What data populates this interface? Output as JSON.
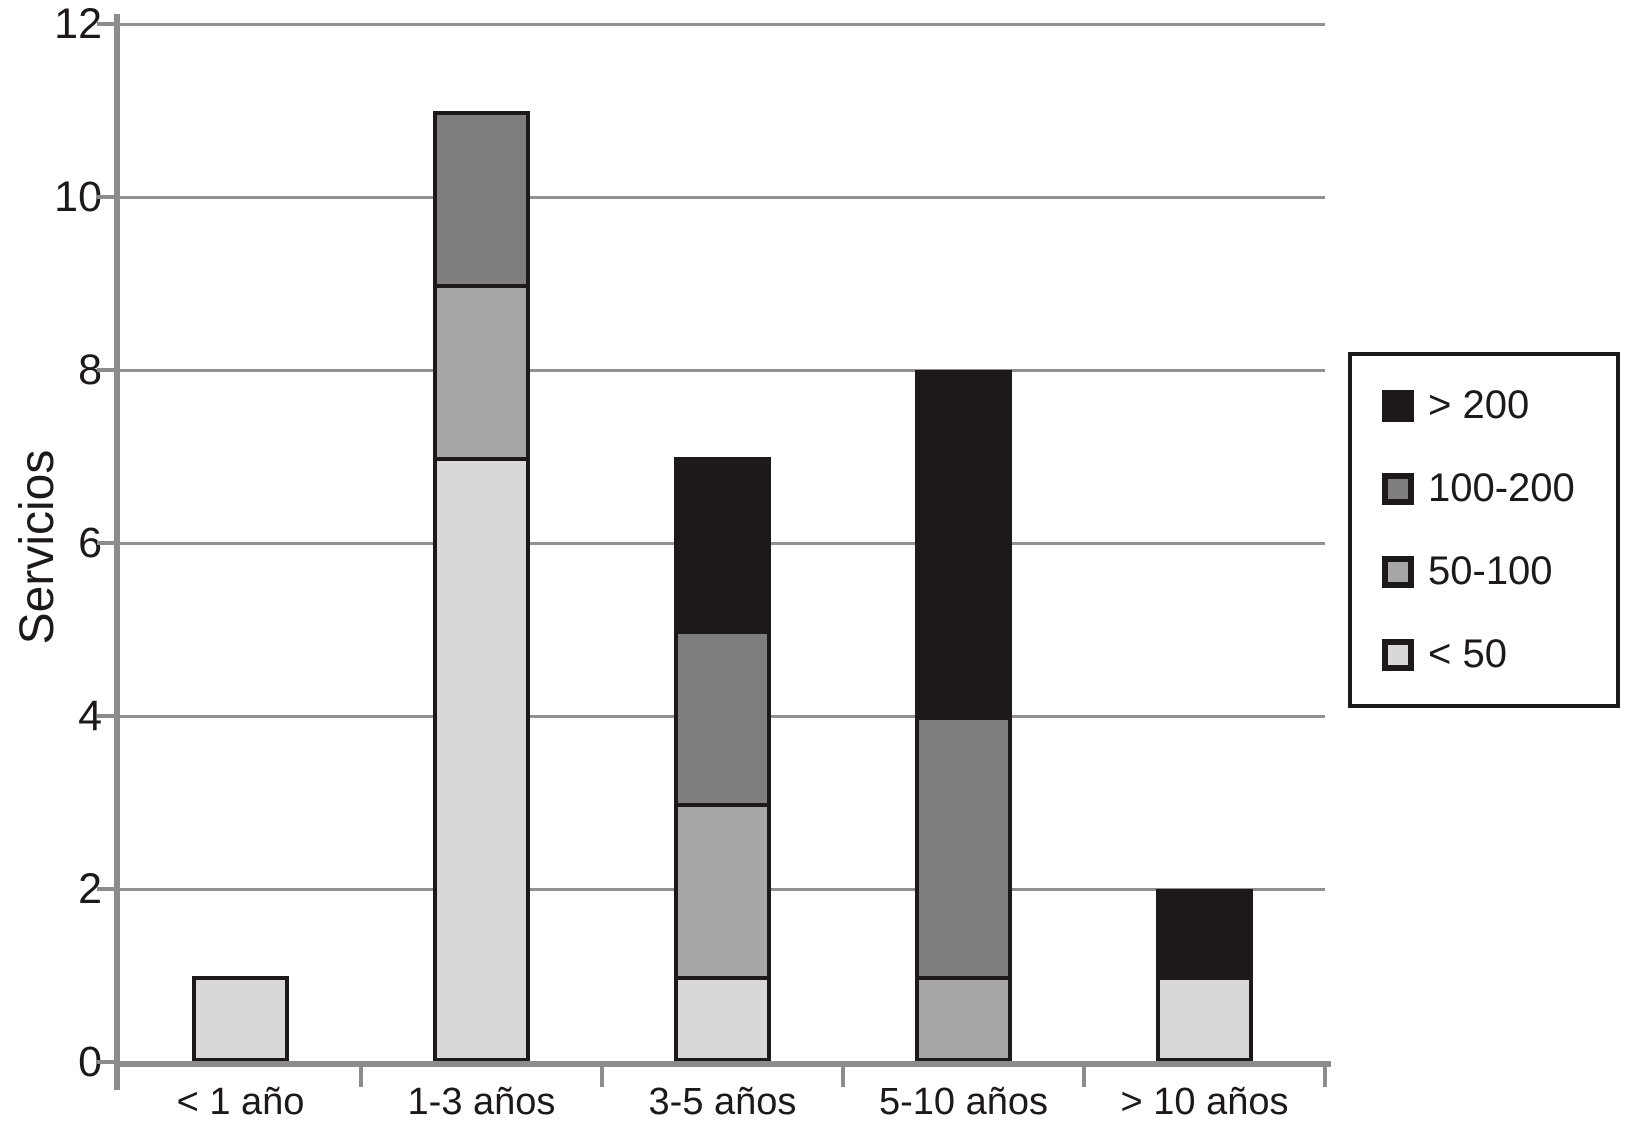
{
  "chart_data": {
    "type": "bar",
    "stacked": true,
    "ylabel": "Servicios",
    "xlabel": "",
    "ylim": [
      0,
      12
    ],
    "yticks": [
      0,
      2,
      4,
      6,
      8,
      10,
      12
    ],
    "grid": true,
    "categories": [
      "< 1 año",
      "1-3 años",
      "3-5 años",
      "5-10 años",
      "> 10 años"
    ],
    "series": [
      {
        "name": "< 50",
        "color": "#d8d8d8",
        "values": [
          1,
          7,
          1,
          0,
          1
        ]
      },
      {
        "name": "50-100",
        "color": "#a6a6a6",
        "values": [
          0,
          2,
          2,
          1,
          0
        ]
      },
      {
        "name": "100-200",
        "color": "#7e7e7e",
        "values": [
          0,
          2,
          2,
          3,
          0
        ]
      },
      {
        "name": "> 200",
        "color": "#1d191a",
        "values": [
          0,
          0,
          2,
          4,
          1
        ]
      }
    ],
    "totals": [
      1,
      11,
      7,
      8,
      2
    ],
    "legend": {
      "position": "right",
      "entries": [
        {
          "label": "> 200",
          "color": "#1d191a"
        },
        {
          "label": "100-200",
          "color": "#7e7e7e"
        },
        {
          "label": "50-100",
          "color": "#a6a6a6"
        },
        {
          "label": "< 50",
          "color": "#d8d8d8"
        }
      ]
    },
    "colors": {
      "axis": "#8c8c8c",
      "grid": "#919191",
      "bar_border": "#1d191a",
      "text": "#1d191a",
      "background": "#ffffff"
    }
  }
}
